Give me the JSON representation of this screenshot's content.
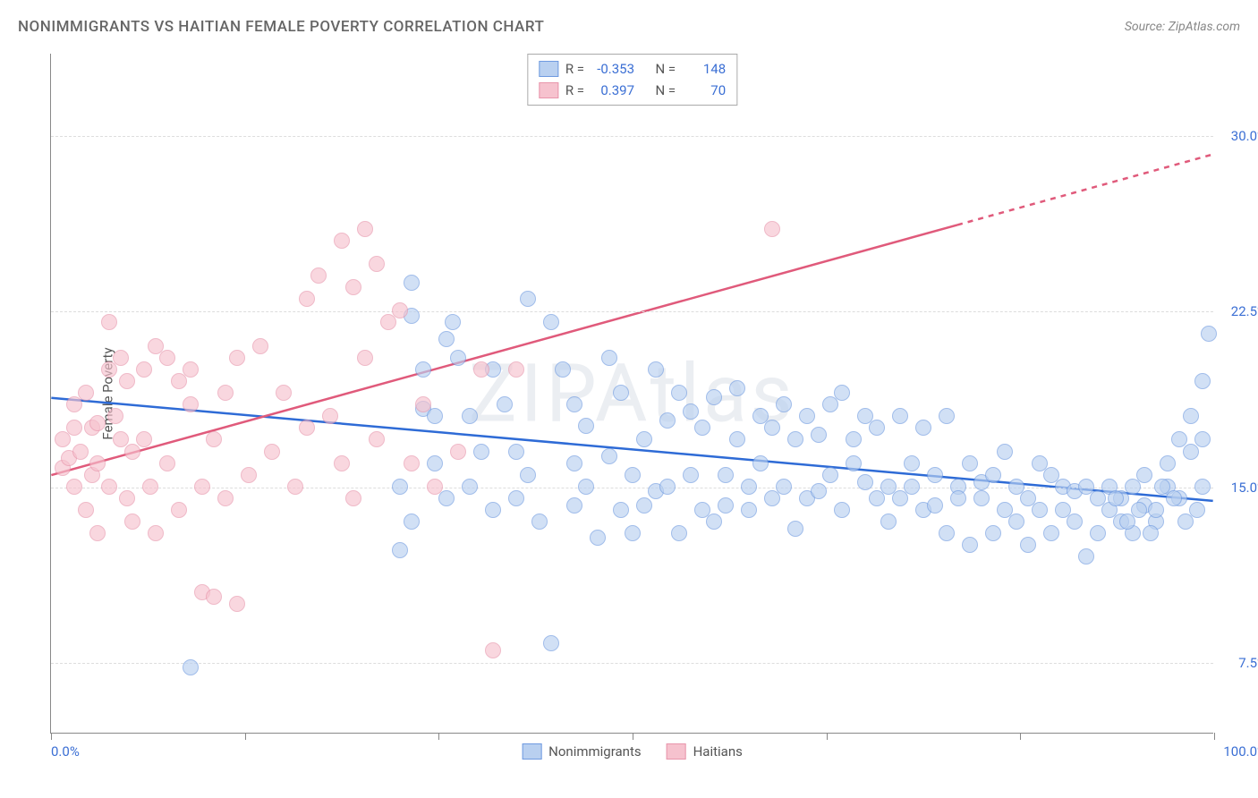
{
  "title": "NONIMMIGRANTS VS HAITIAN FEMALE POVERTY CORRELATION CHART",
  "source": "Source: ZipAtlas.com",
  "watermark": "ZIPAtlas",
  "ylabel": "Female Poverty",
  "chart": {
    "type": "scatter",
    "xlim": [
      0,
      100
    ],
    "ylim": [
      4.5,
      33.5
    ],
    "x_ticks": [
      0,
      16.67,
      33.33,
      50,
      66.67,
      83.33,
      100
    ],
    "x_tick_labels": {
      "0": "0.0%",
      "100": "100.0%"
    },
    "y_gridlines": [
      7.5,
      15.0,
      22.5,
      30.0
    ],
    "y_tick_labels": [
      "7.5%",
      "15.0%",
      "22.5%",
      "30.0%"
    ],
    "grid_color": "#dddddd",
    "axis_color": "#888888",
    "background_color": "#ffffff",
    "tick_label_color": "#3b6fd4",
    "marker_radius": 9,
    "marker_stroke_width": 1.5,
    "series": [
      {
        "name": "Nonimmigrants",
        "fill": "#b9d0f0",
        "stroke": "#6f9ae0",
        "fill_opacity": 0.65,
        "correlation_R": "-0.353",
        "N": "148",
        "trend": {
          "x1": 0,
          "y1": 18.8,
          "x2": 100,
          "y2": 14.4,
          "color": "#2e6bd6",
          "width": 2.5,
          "dash_after_x": null
        },
        "points": [
          [
            12,
            7.3
          ],
          [
            31,
            23.7
          ],
          [
            31,
            22.3
          ],
          [
            32,
            20.0
          ],
          [
            34,
            21.3
          ],
          [
            34.5,
            22.0
          ],
          [
            30,
            12.3
          ],
          [
            30,
            15.0
          ],
          [
            31,
            13.5
          ],
          [
            32,
            18.3
          ],
          [
            33,
            18.0
          ],
          [
            33,
            16.0
          ],
          [
            34,
            14.5
          ],
          [
            35,
            20.5
          ],
          [
            36,
            18.0
          ],
          [
            36,
            15.0
          ],
          [
            37,
            16.5
          ],
          [
            38,
            14.0
          ],
          [
            38,
            20.0
          ],
          [
            39,
            18.5
          ],
          [
            40,
            16.5
          ],
          [
            40,
            14.5
          ],
          [
            41,
            23.0
          ],
          [
            41,
            15.5
          ],
          [
            42,
            13.5
          ],
          [
            43,
            22.0
          ],
          [
            43,
            8.3
          ],
          [
            44,
            20.0
          ],
          [
            45,
            18.5
          ],
          [
            45,
            16.0
          ],
          [
            45,
            14.2
          ],
          [
            46,
            15.0
          ],
          [
            46,
            17.6
          ],
          [
            47,
            12.8
          ],
          [
            48,
            20.5
          ],
          [
            48,
            16.3
          ],
          [
            49,
            14.0
          ],
          [
            49,
            19.0
          ],
          [
            50,
            13.0
          ],
          [
            50,
            15.5
          ],
          [
            51,
            14.2
          ],
          [
            51,
            17.0
          ],
          [
            52,
            20.0
          ],
          [
            52,
            14.8
          ],
          [
            53,
            17.8
          ],
          [
            53,
            15.0
          ],
          [
            54,
            13.0
          ],
          [
            54,
            19.0
          ],
          [
            55,
            15.5
          ],
          [
            55,
            18.2
          ],
          [
            56,
            14.0
          ],
          [
            56,
            17.5
          ],
          [
            57,
            18.8
          ],
          [
            57,
            13.5
          ],
          [
            58,
            15.5
          ],
          [
            58,
            14.2
          ],
          [
            59,
            17.0
          ],
          [
            59,
            19.2
          ],
          [
            60,
            15.0
          ],
          [
            60,
            14.0
          ],
          [
            61,
            18.0
          ],
          [
            61,
            16.0
          ],
          [
            62,
            17.5
          ],
          [
            62,
            14.5
          ],
          [
            63,
            18.5
          ],
          [
            63,
            15.0
          ],
          [
            64,
            13.2
          ],
          [
            64,
            17.0
          ],
          [
            65,
            14.5
          ],
          [
            65,
            18.0
          ],
          [
            66,
            17.2
          ],
          [
            66,
            14.8
          ],
          [
            67,
            15.5
          ],
          [
            67,
            18.5
          ],
          [
            68,
            19.0
          ],
          [
            68,
            14.0
          ],
          [
            69,
            16.0
          ],
          [
            69,
            17.0
          ],
          [
            70,
            15.2
          ],
          [
            70,
            18.0
          ],
          [
            71,
            14.5
          ],
          [
            71,
            17.5
          ],
          [
            72,
            15.0
          ],
          [
            72,
            13.5
          ],
          [
            73,
            18.0
          ],
          [
            73,
            14.5
          ],
          [
            74,
            16.0
          ],
          [
            74,
            15.0
          ],
          [
            75,
            14.0
          ],
          [
            75,
            17.5
          ],
          [
            76,
            15.5
          ],
          [
            76,
            14.2
          ],
          [
            77,
            18.0
          ],
          [
            77,
            13.0
          ],
          [
            78,
            15.0
          ],
          [
            78,
            14.5
          ],
          [
            79,
            12.5
          ],
          [
            79,
            16.0
          ],
          [
            80,
            14.5
          ],
          [
            80,
            15.2
          ],
          [
            81,
            13.0
          ],
          [
            81,
            15.5
          ],
          [
            82,
            14.0
          ],
          [
            82,
            16.5
          ],
          [
            83,
            13.5
          ],
          [
            83,
            15.0
          ],
          [
            84,
            14.5
          ],
          [
            84,
            12.5
          ],
          [
            85,
            16.0
          ],
          [
            85,
            14.0
          ],
          [
            86,
            13.0
          ],
          [
            86,
            15.5
          ],
          [
            87,
            14.0
          ],
          [
            87,
            15.0
          ],
          [
            88,
            13.5
          ],
          [
            88,
            14.8
          ],
          [
            89,
            12.0
          ],
          [
            89,
            15.0
          ],
          [
            90,
            14.5
          ],
          [
            90,
            13.0
          ],
          [
            91,
            15.0
          ],
          [
            91,
            14.0
          ],
          [
            92,
            13.5
          ],
          [
            92,
            14.5
          ],
          [
            93,
            15.0
          ],
          [
            93,
            13.0
          ],
          [
            94,
            14.2
          ],
          [
            94,
            15.5
          ],
          [
            95,
            13.5
          ],
          [
            95,
            14.0
          ],
          [
            96,
            15.0
          ],
          [
            96,
            16.0
          ],
          [
            97,
            14.5
          ],
          [
            97,
            17.0
          ],
          [
            98,
            16.5
          ],
          [
            98,
            18.0
          ],
          [
            99,
            17.0
          ],
          [
            99,
            19.5
          ],
          [
            99.5,
            21.5
          ],
          [
            99,
            15.0
          ],
          [
            98.5,
            14.0
          ],
          [
            97.5,
            13.5
          ],
          [
            96.5,
            14.5
          ],
          [
            95.5,
            15.0
          ],
          [
            94.5,
            13.0
          ],
          [
            93.5,
            14.0
          ],
          [
            92.5,
            13.5
          ],
          [
            91.5,
            14.5
          ]
        ]
      },
      {
        "name": "Haitians",
        "fill": "#f6c2ce",
        "stroke": "#e895ab",
        "fill_opacity": 0.65,
        "correlation_R": "0.397",
        "N": "70",
        "trend": {
          "x1": 0,
          "y1": 15.5,
          "x2": 100,
          "y2": 29.2,
          "color": "#e05a7b",
          "width": 2.5,
          "dash_after_x": 78
        },
        "points": [
          [
            1,
            17.0
          ],
          [
            1,
            15.8
          ],
          [
            1.5,
            16.2
          ],
          [
            2,
            17.5
          ],
          [
            2,
            15.0
          ],
          [
            2,
            18.5
          ],
          [
            2.5,
            16.5
          ],
          [
            3,
            19.0
          ],
          [
            3,
            14.0
          ],
          [
            3.5,
            15.5
          ],
          [
            3.5,
            17.5
          ],
          [
            4,
            13.0
          ],
          [
            4,
            17.7
          ],
          [
            4,
            16.0
          ],
          [
            5,
            20.0
          ],
          [
            5,
            15.0
          ],
          [
            5,
            22.0
          ],
          [
            5.5,
            18.0
          ],
          [
            6,
            17.0
          ],
          [
            6,
            20.5
          ],
          [
            6.5,
            14.5
          ],
          [
            6.5,
            19.5
          ],
          [
            7,
            16.5
          ],
          [
            7,
            13.5
          ],
          [
            8,
            20.0
          ],
          [
            8,
            17.0
          ],
          [
            8.5,
            15.0
          ],
          [
            9,
            21.0
          ],
          [
            9,
            13.0
          ],
          [
            10,
            20.5
          ],
          [
            10,
            16.0
          ],
          [
            11,
            19.5
          ],
          [
            11,
            14.0
          ],
          [
            12,
            18.5
          ],
          [
            12,
            20.0
          ],
          [
            13,
            10.5
          ],
          [
            13,
            15.0
          ],
          [
            14,
            10.3
          ],
          [
            14,
            17.0
          ],
          [
            15,
            19.0
          ],
          [
            15,
            14.5
          ],
          [
            16,
            10.0
          ],
          [
            16,
            20.5
          ],
          [
            17,
            15.5
          ],
          [
            18,
            21.0
          ],
          [
            19,
            16.5
          ],
          [
            20,
            19.0
          ],
          [
            21,
            15.0
          ],
          [
            22,
            23.0
          ],
          [
            22,
            17.5
          ],
          [
            23,
            24.0
          ],
          [
            24,
            18.0
          ],
          [
            25,
            25.5
          ],
          [
            25,
            16.0
          ],
          [
            26,
            23.5
          ],
          [
            26,
            14.5
          ],
          [
            27,
            26.0
          ],
          [
            27,
            20.5
          ],
          [
            28,
            24.5
          ],
          [
            28,
            17.0
          ],
          [
            29,
            22.0
          ],
          [
            30,
            22.5
          ],
          [
            31,
            16.0
          ],
          [
            32,
            18.5
          ],
          [
            33,
            15.0
          ],
          [
            35,
            16.5
          ],
          [
            37,
            20.0
          ],
          [
            38,
            8.0
          ],
          [
            40,
            20.0
          ],
          [
            62,
            26.0
          ]
        ]
      }
    ],
    "legend_bottom": [
      {
        "label": "Nonimmigrants",
        "fill": "#b9d0f0",
        "stroke": "#6f9ae0"
      },
      {
        "label": "Haitians",
        "fill": "#f6c2ce",
        "stroke": "#e895ab"
      }
    ]
  }
}
